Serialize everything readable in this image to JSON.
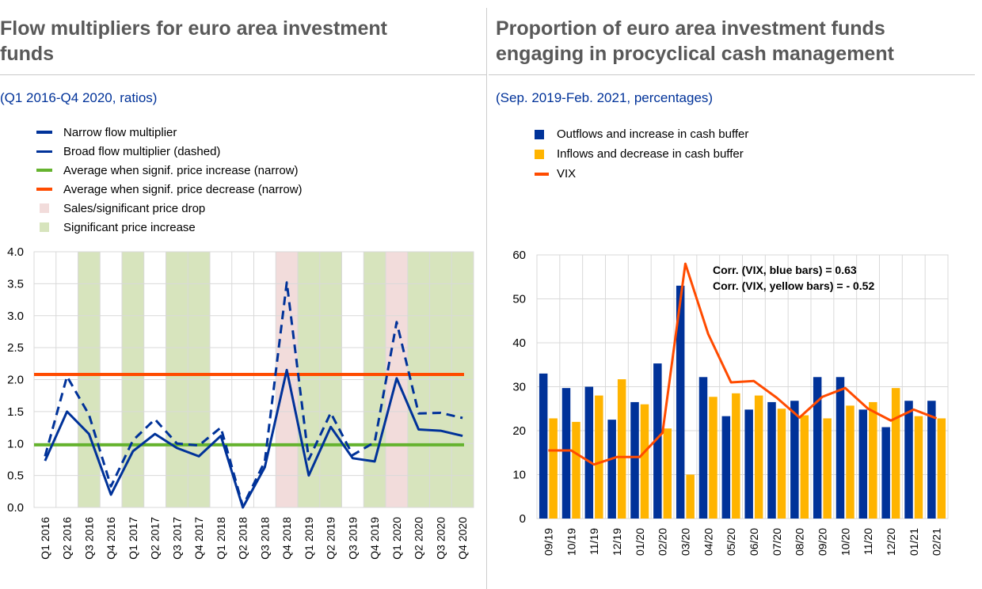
{
  "left": {
    "title_line1": "Flow multipliers for euro area investment",
    "title_line2": "funds",
    "subtitle": "(Q1 2016-Q4 2020, ratios)",
    "legend": [
      {
        "label": "Narrow flow multiplier",
        "color": "#003299"
      },
      {
        "label": "Broad flow multiplier (dashed)",
        "color": "#003299"
      },
      {
        "label": "Average when signif. price increase (narrow)",
        "color": "#65b32e"
      },
      {
        "label": "Average when signif. price decrease (narrow)",
        "color": "#ff4b00"
      },
      {
        "label": "Sales/significant price drop",
        "color": "#f2dcdb"
      },
      {
        "label": "Significant price increase",
        "color": "#d7e4bd"
      }
    ]
  },
  "right": {
    "title_line1": "Proportion of euro area investment funds",
    "title_line2": "engaging in procyclical cash management",
    "subtitle": "(Sep. 2019-Feb. 2021, percentages)",
    "legend": [
      {
        "label": "Outflows and increase in cash buffer",
        "color": "#003299"
      },
      {
        "label": "Inflows and decrease in cash buffer",
        "color": "#ffb400"
      },
      {
        "label": "VIX",
        "color": "#ff4b00"
      }
    ],
    "annotation_1": "Corr. (VIX, blue bars) = 0.63",
    "annotation_2": "Corr. (VIX, yellow  bars) = - 0.52"
  },
  "chart_data": [
    {
      "type": "line",
      "categories": [
        "Q1 2016",
        "Q2 2016",
        "Q3 2016",
        "Q4 2016",
        "Q1 2017",
        "Q2 2017",
        "Q3 2017",
        "Q4 2017",
        "Q1 2018",
        "Q2 2018",
        "Q3 2018",
        "Q4 2018",
        "Q1 2019",
        "Q2 2019",
        "Q3 2019",
        "Q4 2019",
        "Q1 2020",
        "Q2 2020",
        "Q3 2020",
        "Q4 2020"
      ],
      "ylim": [
        0,
        4
      ],
      "yticks": [
        "0.0",
        "0.5",
        "1.0",
        "1.5",
        "2.0",
        "2.5",
        "3.0",
        "3.5",
        "4.0"
      ],
      "grid": true,
      "series": [
        {
          "name": "Narrow flow multiplier",
          "style": "solid",
          "color": "#003299",
          "values": [
            0.73,
            1.5,
            1.15,
            0.2,
            0.88,
            1.15,
            0.93,
            0.8,
            1.12,
            0.0,
            0.63,
            2.15,
            0.5,
            1.26,
            0.77,
            0.72,
            2.02,
            1.22,
            1.2,
            1.12
          ]
        },
        {
          "name": "Broad flow multiplier (dashed)",
          "style": "dashed",
          "color": "#003299",
          "values": [
            0.8,
            2.05,
            1.45,
            0.33,
            1.05,
            1.38,
            1.0,
            0.97,
            1.25,
            0.02,
            0.72,
            3.52,
            0.75,
            1.48,
            0.82,
            1.02,
            2.9,
            1.47,
            1.48,
            1.4
          ]
        },
        {
          "name": "Average when signif. price increase (narrow)",
          "style": "hline",
          "color": "#65b32e",
          "value": 0.98
        },
        {
          "name": "Average when signif. price decrease (narrow)",
          "style": "hline",
          "color": "#ff4b00",
          "value": 2.08
        }
      ],
      "shaded_regions": [
        {
          "name": "Significant price increase",
          "color": "#d7e4bd",
          "quarters": [
            2,
            4,
            6,
            7,
            12,
            13,
            15,
            17,
            18,
            19
          ]
        },
        {
          "name": "Sales/significant price drop",
          "color": "#f2dcdb",
          "quarters": [
            11,
            16
          ]
        }
      ]
    },
    {
      "type": "bar",
      "categories": [
        "09/19",
        "10/19",
        "11/19",
        "12/19",
        "01/20",
        "02/20",
        "03/20",
        "04/20",
        "05/20",
        "06/20",
        "07/20",
        "08/20",
        "09/20",
        "10/20",
        "11/20",
        "12/20",
        "01/21",
        "02/21"
      ],
      "ylim": [
        0,
        60
      ],
      "yticks": [
        "0",
        "10",
        "20",
        "30",
        "40",
        "50",
        "60"
      ],
      "grid": true,
      "series": [
        {
          "name": "Outflows and increase in cash buffer",
          "color": "#003299",
          "values": [
            33,
            29.7,
            30,
            22.5,
            26.5,
            35.3,
            53,
            32.2,
            23.3,
            24.8,
            26.5,
            26.8,
            32.2,
            32.2,
            24.8,
            20.8,
            26.8,
            26.8
          ]
        },
        {
          "name": "Inflows and decrease in cash buffer",
          "color": "#ffb400",
          "values": [
            22.8,
            22,
            28,
            31.7,
            26,
            20.5,
            10,
            27.7,
            28.5,
            28,
            25,
            23.5,
            22.8,
            25.7,
            26.5,
            29.7,
            23.3,
            22.8
          ]
        },
        {
          "name": "VIX",
          "type": "line",
          "color": "#ff4b00",
          "values": [
            15.5,
            15.5,
            12.3,
            14,
            14,
            19.5,
            58,
            42,
            31,
            31.3,
            27.5,
            23,
            27.7,
            29.7,
            25,
            22.3,
            24.8,
            22.8
          ]
        }
      ]
    }
  ]
}
